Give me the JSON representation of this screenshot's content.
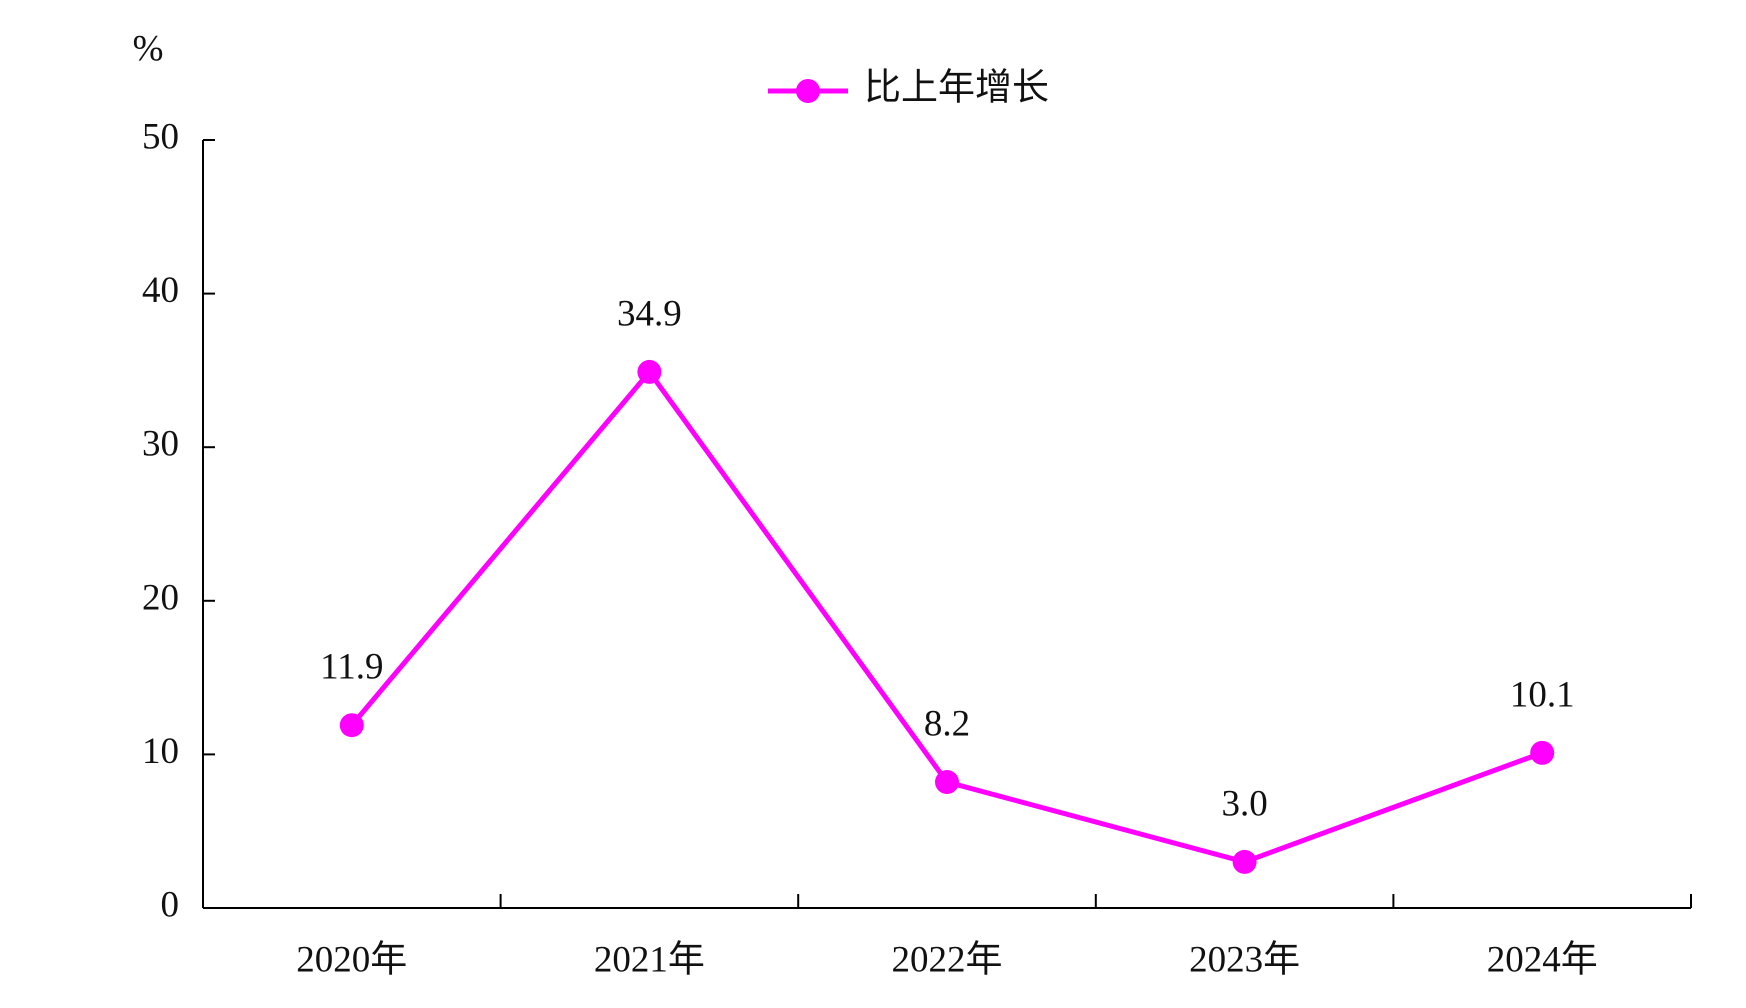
{
  "chart_data": {
    "type": "line",
    "y_label": "%",
    "categories": [
      "2020年",
      "2021年",
      "2022年",
      "2023年",
      "2024年"
    ],
    "series": [
      {
        "name": "比上年增长",
        "color": "#ff00ff",
        "values": [
          11.9,
          34.9,
          8.2,
          3.0,
          10.1
        ],
        "value_labels": [
          "11.9",
          "34.9",
          "8.2",
          "3.0",
          "10.1"
        ]
      }
    ],
    "ylim": [
      0,
      50
    ],
    "yticks": [
      0,
      10,
      20,
      30,
      40,
      50
    ],
    "legend": "top"
  }
}
